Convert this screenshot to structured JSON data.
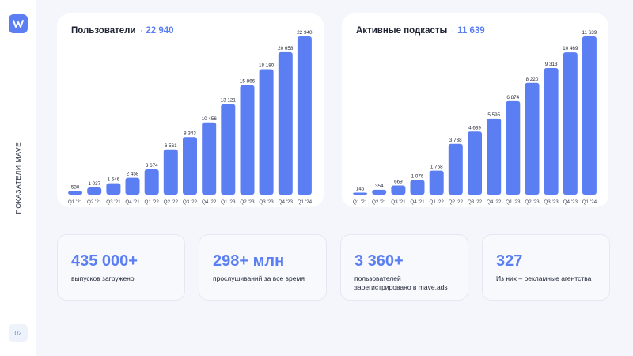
{
  "sidebar": {
    "section_label": "ПОКАЗАТЕЛИ MAVE",
    "page_number": "02",
    "logo_icon": "mave-w-logo"
  },
  "colors": {
    "accent": "#5b7ff2",
    "background": "#f4f6fb",
    "card": "#ffffff"
  },
  "charts": {
    "users": {
      "title": "Пользователи",
      "total": "22 940"
    },
    "podcasts": {
      "title": "Активные подкасты",
      "total": "11 639"
    }
  },
  "chart_data": [
    {
      "type": "bar",
      "title": "Пользователи · 22 940",
      "categories": [
        "Q1 '21",
        "Q2 '21",
        "Q3 '21",
        "Q4 '21",
        "Q1 '22",
        "Q2 '22",
        "Q3 '22",
        "Q4 '22",
        "Q1 '23",
        "Q2 '23",
        "Q3 '23",
        "Q4 '23",
        "Q1 '24"
      ],
      "values": [
        530,
        1037,
        1646,
        2458,
        3674,
        6561,
        8343,
        10456,
        13121,
        15866,
        18180,
        20658,
        22940
      ],
      "value_labels": [
        "530",
        "1 037",
        "1 646",
        "2 458",
        "3 674",
        "6 561",
        "8 343",
        "10 456",
        "13 121",
        "15 866",
        "18 180",
        "20 658",
        "22 940"
      ],
      "ylim": [
        0,
        22940
      ],
      "grid": false,
      "legend": "none"
    },
    {
      "type": "bar",
      "title": "Активные подкасты · 11 639",
      "categories": [
        "Q1 '21",
        "Q2 '21",
        "Q3 '21",
        "Q4 '21",
        "Q1 '22",
        "Q2 '22",
        "Q3 '22",
        "Q4 '22",
        "Q1 '23",
        "Q2 '23",
        "Q3 '23",
        "Q4 '23",
        "Q1 '24"
      ],
      "values": [
        145,
        354,
        669,
        1076,
        1768,
        3738,
        4639,
        5595,
        6874,
        8220,
        9313,
        10469,
        11639
      ],
      "value_labels": [
        "145",
        "354",
        "669",
        "1 076",
        "1 768",
        "3 738",
        "4 639",
        "5 595",
        "6 874",
        "8 220",
        "9 313",
        "10 469",
        "11 639"
      ],
      "ylim": [
        0,
        11639
      ],
      "grid": false,
      "legend": "none"
    }
  ],
  "stats": [
    {
      "value": "435 000+",
      "description": "выпусков загружено"
    },
    {
      "value": "298+ млн",
      "description": "прослушиваний за все время"
    },
    {
      "value": "3 360+",
      "description": "пользователей зарегистрировано в mave.ads"
    },
    {
      "value": "327",
      "description": "Из них – рекламные агентства"
    }
  ]
}
